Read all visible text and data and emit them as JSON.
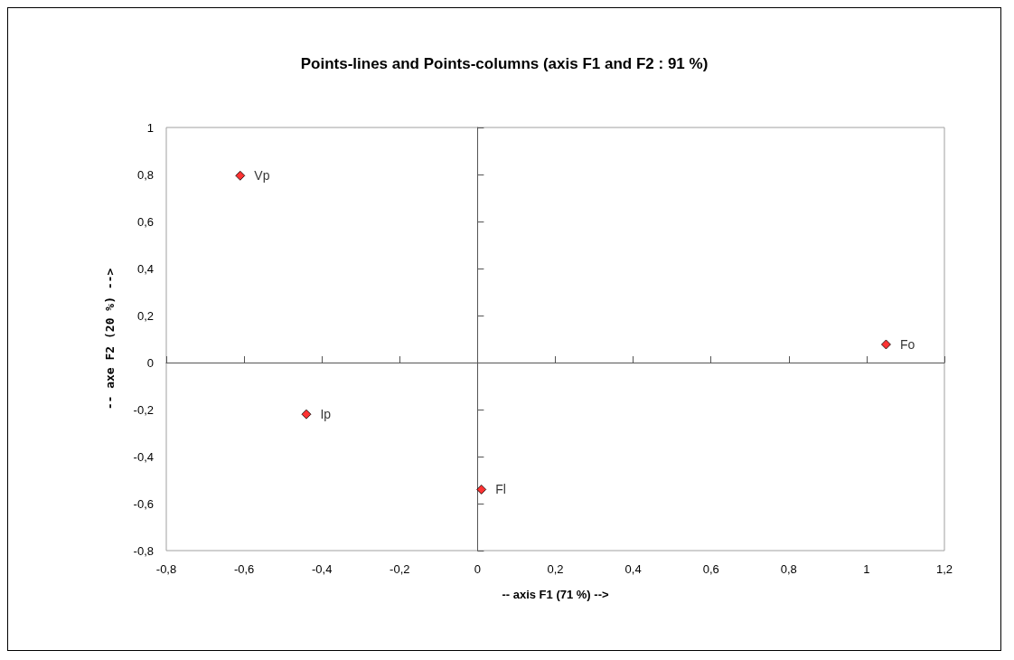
{
  "chart_data": {
    "type": "scatter",
    "title": "Points-lines and Points-columns (axis F1 and F2 : 91 %)",
    "xlabel": "-- axis F1 (71 %) -->",
    "ylabel": "-- axe F2 (20 %) -->",
    "series": [
      {
        "name": "Vp",
        "color": "#ff0000",
        "x": [
          -0.61
        ],
        "values": [
          0.795
        ]
      },
      {
        "name": "Ip",
        "color": "#ff0000",
        "x": [
          -0.44
        ],
        "values": [
          -0.22
        ]
      },
      {
        "name": "Fl",
        "color": "#ff0000",
        "x": [
          0.01
        ],
        "values": [
          -0.54
        ]
      },
      {
        "name": "Fo",
        "color": "#ff0000",
        "x": [
          1.05
        ],
        "values": [
          0.077
        ]
      }
    ],
    "marker": "diamond",
    "legend": false,
    "xlim": [
      -0.8,
      1.2
    ],
    "xticks": [
      {
        "value": -0.8,
        "label": "-0,8"
      },
      {
        "value": -0.6,
        "label": "-0,6"
      },
      {
        "value": -0.4,
        "label": "-0,4"
      },
      {
        "value": -0.2,
        "label": "-0,2"
      },
      0,
      {
        "value": 0.2,
        "label": "0,2"
      },
      {
        "value": 0.4,
        "label": "0,4"
      },
      {
        "value": 0.6,
        "label": "0,6"
      },
      {
        "value": 0.8,
        "label": "0,8"
      },
      1,
      {
        "value": 1.2,
        "label": "1,2"
      }
    ],
    "ylim": [
      -0.8,
      1
    ],
    "yticks": [
      {
        "value": -0.8,
        "label": "-0,8"
      },
      {
        "value": -0.6,
        "label": "-0,6"
      },
      {
        "value": -0.4,
        "label": "-0,4"
      },
      {
        "value": -0.2,
        "label": "-0,2"
      },
      0,
      {
        "value": 0.2,
        "label": "0,2"
      },
      {
        "value": 0.4,
        "label": "0,4"
      },
      {
        "value": 0.6,
        "label": "0,6"
      },
      {
        "value": 0.8,
        "label": "0,8"
      },
      1
    ]
  }
}
